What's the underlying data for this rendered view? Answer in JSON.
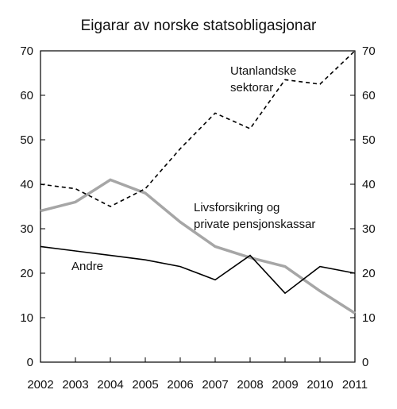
{
  "chart_data": {
    "type": "line",
    "title": "Eigarar av norske statsobligasjonar",
    "x": [
      2002,
      2003,
      2004,
      2005,
      2006,
      2007,
      2008,
      2009,
      2010,
      2011
    ],
    "xlabel": "",
    "ylabel": "",
    "ylim": [
      0,
      70
    ],
    "yticks": [
      0,
      10,
      20,
      30,
      40,
      50,
      60,
      70
    ],
    "grid": false,
    "legend": "none (inline annotations)",
    "series": [
      {
        "name": "Utanlandske sektorar",
        "label_lines": [
          "Utanlandske",
          "sektorar"
        ],
        "style": "dashed",
        "color": "#000000",
        "values": [
          40,
          39,
          35,
          39,
          48,
          56,
          52.5,
          63.5,
          62.5,
          70
        ]
      },
      {
        "name": "Livsforsikring og private pensjonskassar",
        "label_lines": [
          "Livsforsikring og",
          "private pensjonskassar"
        ],
        "style": "solid-thick",
        "color": "#a6a6a6",
        "values": [
          34,
          36,
          41,
          38,
          31.5,
          26,
          23.5,
          21.5,
          16,
          11
        ]
      },
      {
        "name": "Andre",
        "label_lines": [
          "Andre"
        ],
        "style": "solid",
        "color": "#000000",
        "values": [
          26,
          25,
          24,
          23,
          21.5,
          18.5,
          24,
          15.5,
          21.5,
          20
        ]
      }
    ]
  }
}
